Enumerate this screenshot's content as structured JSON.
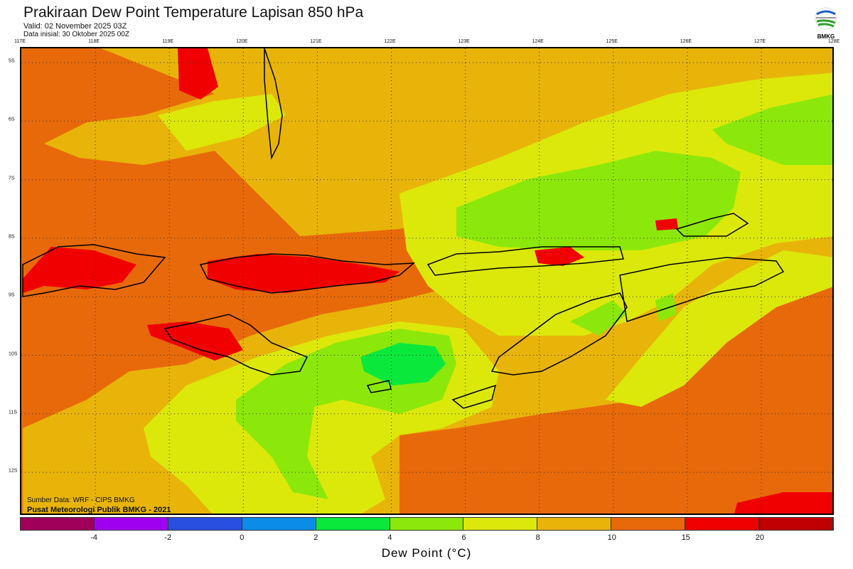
{
  "header": {
    "title": "Prakiraan Dew Point Temperature Lapisan 850 hPa",
    "valid": "Valid: 02 November 2025 03Z",
    "init": "Data inisial: 30 Oktober 2025 00Z"
  },
  "logo": {
    "text": "BMKG"
  },
  "axes": {
    "lon": [
      "117E",
      "118E",
      "119E",
      "120E",
      "121E",
      "122E",
      "123E",
      "124E",
      "125E",
      "126E",
      "127E",
      "128E"
    ],
    "lat": [
      "5S",
      "6S",
      "7S",
      "8S",
      "9S",
      "10S",
      "11S",
      "12S"
    ]
  },
  "credits": {
    "source": "Sumber Data: WRF - CIPS BMKG",
    "org": "Pusat Meteorologi Publik BMKG - 2021"
  },
  "colorbar": {
    "label": "Dew Point (°C)",
    "ticks": [
      "-4",
      "-2",
      "0",
      "2",
      "4",
      "6",
      "8",
      "10",
      "15",
      "20"
    ],
    "colors": [
      "#a0005a",
      "#a000f0",
      "#2850e0",
      "#0a8ce8",
      "#0ae83c",
      "#8ce80a",
      "#dce80a",
      "#e8b40a",
      "#e8690a",
      "#f00000",
      "#c00000"
    ]
  }
}
